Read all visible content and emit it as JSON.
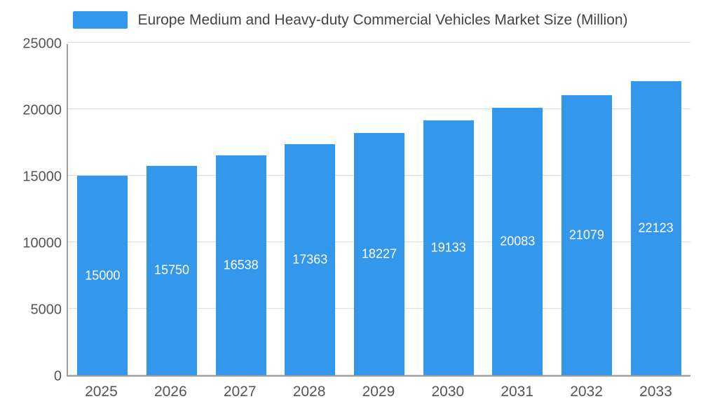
{
  "chart_data": {
    "type": "bar",
    "title": "Europe Medium and Heavy-duty Commercial Vehicles Market Size (Million)",
    "categories": [
      "2025",
      "2026",
      "2027",
      "2028",
      "2029",
      "2030",
      "2031",
      "2032",
      "2033"
    ],
    "values": [
      15000,
      15750,
      16538,
      17363,
      18227,
      19133,
      20083,
      21079,
      22123
    ],
    "series_name": "Europe Medium and Heavy-duty Commercial Vehicles Market Size (Million)",
    "xlabel": "",
    "ylabel": "",
    "ylim": [
      0,
      25000
    ],
    "yticks": [
      0,
      5000,
      10000,
      15000,
      20000,
      25000
    ],
    "grid": "horizontal",
    "legend_position": "top",
    "bar_color": "#3398ec",
    "value_label_color": "#ffffff"
  }
}
